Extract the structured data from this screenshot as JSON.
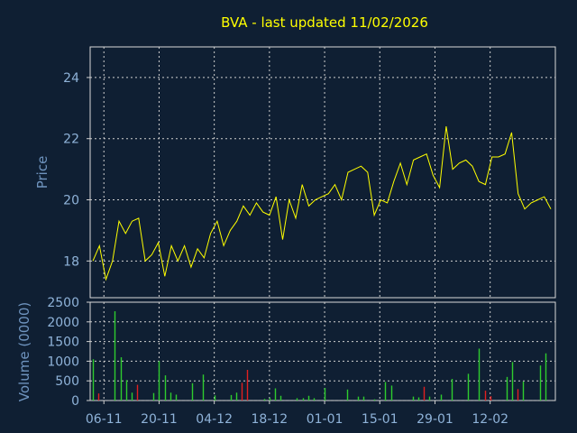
{
  "chart_data": {
    "title": "BVA - last updated 11/02/2026",
    "colors": {
      "background": "#0f1f33",
      "price_line": "#ffff00",
      "volume_up": "#2ecc2e",
      "volume_down": "#e02020",
      "text": "#8fb3d9",
      "title": "#ffff00"
    },
    "x_tick_labels": [
      "06-11",
      "20-11",
      "04-12",
      "18-12",
      "01-01",
      "15-01",
      "29-01",
      "12-02"
    ],
    "x_tick_index": [
      2,
      12,
      22,
      32,
      42,
      52,
      62,
      72
    ],
    "panels": [
      {
        "type": "line",
        "ylabel": "Price",
        "ylim": [
          16.8,
          25.0
        ],
        "yticks": [
          18,
          20,
          22,
          24
        ],
        "grid": true,
        "series": [
          {
            "values": [
              18.0,
              18.5,
              17.4,
              18.0,
              19.3,
              18.9,
              19.3,
              19.4,
              18.0,
              18.2,
              18.6,
              17.5,
              18.5,
              18.0,
              18.5,
              17.8,
              18.4,
              18.1,
              18.9,
              19.3,
              18.5,
              19.0,
              19.3,
              19.8,
              19.5,
              19.9,
              19.6,
              19.5,
              20.1,
              18.7,
              20.0,
              19.4,
              20.5,
              19.8,
              20.0,
              20.1,
              20.2,
              20.5,
              20.0,
              20.9,
              21.0,
              21.1,
              20.9,
              19.5,
              20.0,
              19.9,
              20.6,
              21.2,
              20.5,
              21.3,
              21.4,
              21.5,
              20.8,
              20.4,
              22.4,
              21.0,
              21.2,
              21.3,
              21.1,
              20.6,
              20.5,
              21.4,
              21.4,
              21.5,
              22.2,
              20.2,
              19.7,
              19.9,
              20.0,
              20.1,
              19.7
            ]
          }
        ]
      },
      {
        "type": "bar",
        "ylabel": "Volume (0000)",
        "ylim": [
          0,
          2500
        ],
        "yticks": [
          0,
          500,
          1000,
          1500,
          2000,
          2500
        ],
        "grid": true,
        "series": [
          {
            "values": [
              1050,
              180,
              0,
              0,
              2270,
              1100,
              520,
              200,
              400,
              0,
              0,
              190,
              1000,
              640,
              200,
              150,
              0,
              0,
              440,
              0,
              660,
              0,
              130,
              0,
              0,
              140,
              200,
              450,
              780,
              0,
              0,
              40,
              60,
              310,
              120,
              0,
              0,
              60,
              60,
              120,
              60,
              0,
              320,
              0,
              0,
              0,
              280,
              0,
              100,
              100,
              0,
              30,
              0,
              470,
              380,
              0,
              0,
              0,
              100,
              80,
              350,
              100,
              0,
              150,
              0,
              550,
              0,
              0,
              680,
              0,
              1320,
              250,
              110,
              0,
              0,
              600,
              980,
              290,
              480,
              0,
              0,
              890,
              1200,
              0
            ],
            "direction": [
              "up",
              "down",
              "up",
              "up",
              "up",
              "up",
              "up",
              "up",
              "down",
              "up",
              "up",
              "up",
              "up",
              "up",
              "up",
              "up",
              "up",
              "up",
              "up",
              "up",
              "up",
              "up",
              "up",
              "up",
              "up",
              "up",
              "up",
              "down",
              "down",
              "up",
              "up",
              "up",
              "up",
              "up",
              "up",
              "up",
              "up",
              "up",
              "up",
              "up",
              "up",
              "up",
              "up",
              "up",
              "up",
              "up",
              "up",
              "up",
              "up",
              "up",
              "up",
              "up",
              "up",
              "up",
              "up",
              "up",
              "up",
              "up",
              "up",
              "up",
              "down",
              "up",
              "up",
              "up",
              "up",
              "up",
              "up",
              "up",
              "up",
              "up",
              "up",
              "down",
              "down",
              "up",
              "up",
              "up",
              "up",
              "down",
              "up",
              "up",
              "up",
              "up",
              "up",
              "up"
            ]
          }
        ]
      }
    ]
  }
}
